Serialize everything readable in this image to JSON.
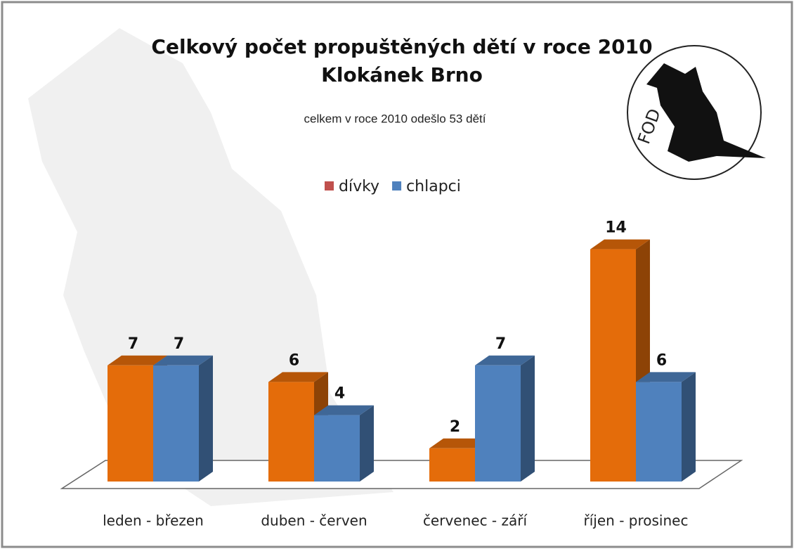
{
  "chart_data": {
    "type": "bar3d",
    "title_lines": [
      "Celkový počet propuštěných dětí v roce 2010",
      "Klokánek Brno"
    ],
    "subtitle": "celkem v roce 2010 odešlo 53 dětí",
    "logo_text": "FOD",
    "categories": [
      "leden - březen",
      "duben - červen",
      "červenec - září",
      "říjen - prosinec"
    ],
    "series": [
      {
        "name": "dívky",
        "color": "#e46c0a",
        "legend_color": "#c0504d",
        "values": [
          7,
          6,
          2,
          14
        ]
      },
      {
        "name": "chlapci",
        "color": "#4f81bd",
        "legend_color": "#4f81bd",
        "values": [
          7,
          4,
          7,
          6
        ]
      }
    ]
  }
}
